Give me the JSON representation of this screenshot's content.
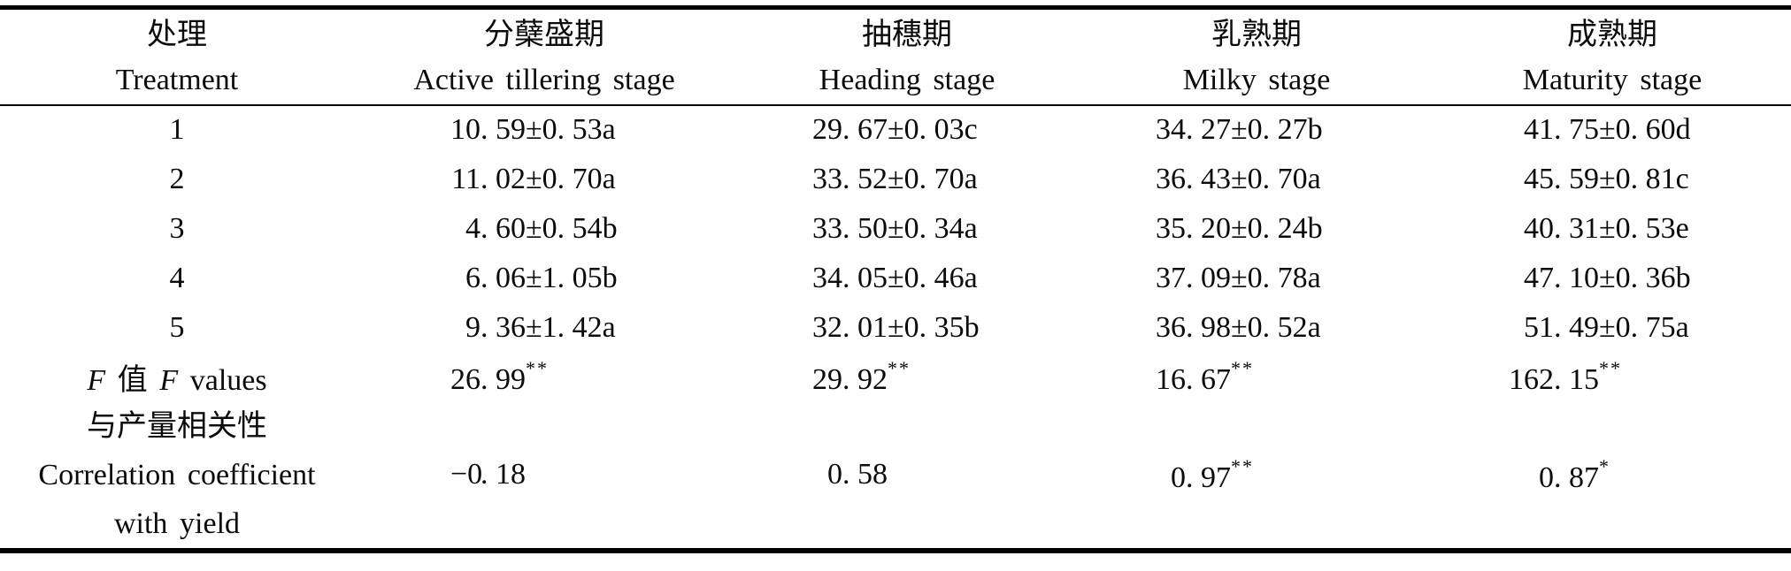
{
  "table": {
    "columns": [
      {
        "zh": "处理",
        "en": "Treatment"
      },
      {
        "zh": "分蘖盛期",
        "en": "Active tillering stage"
      },
      {
        "zh": "抽穗期",
        "en": "Heading stage"
      },
      {
        "zh": "乳熟期",
        "en": "Milky stage"
      },
      {
        "zh": "成熟期",
        "en": "Maturity stage"
      }
    ],
    "rows": [
      {
        "label": "1",
        "values": [
          "10. 59±0. 53a",
          "29. 67±0. 03c",
          "34. 27±0. 27b",
          "41. 75±0. 60d"
        ]
      },
      {
        "label": "2",
        "values": [
          "11. 02±0. 70a",
          "33. 52±0. 70a",
          "36. 43±0. 70a",
          "45. 59±0. 81c"
        ]
      },
      {
        "label": "3",
        "values": [
          "4. 60±0. 54b",
          "33. 50±0. 34a",
          "35. 20±0. 24b",
          "40. 31±0. 53e"
        ]
      },
      {
        "label": "4",
        "values": [
          "6. 06±1. 05b",
          "34. 05±0. 46a",
          "37. 09±0. 78a",
          "47. 10±0. 36b"
        ]
      },
      {
        "label": "5",
        "values": [
          "9. 36±1. 42a",
          "32. 01±0. 35b",
          "36. 98±0. 52a",
          "51. 49±0. 75a"
        ]
      }
    ],
    "f_row": {
      "label_runs": [
        {
          "t": "F",
          "i": true
        },
        {
          "t": " 值 ",
          "i": false
        },
        {
          "t": "F",
          "i": true
        },
        {
          "t": " values",
          "i": false
        }
      ],
      "values": [
        "26. 99**",
        "29. 92**",
        "16. 67**",
        "162. 15**"
      ]
    },
    "corr_row": {
      "label_lines": [
        "与产量相关性",
        "Correlation coefficient",
        "with yield"
      ],
      "values": [
        "−0. 18",
        "0. 58",
        "0. 97**",
        "0. 87*"
      ]
    },
    "colors": {
      "text": "#0b0b0b",
      "rule": "#000000",
      "background": "#ffffff"
    }
  }
}
